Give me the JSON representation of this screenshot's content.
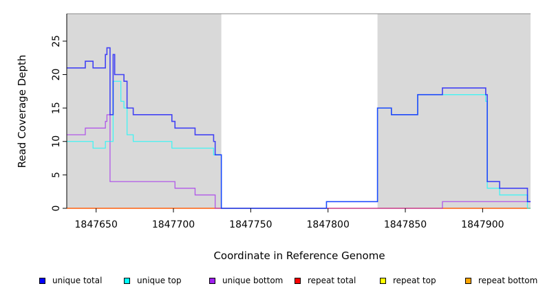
{
  "chart_data": {
    "type": "line",
    "step": true,
    "title": "",
    "xlabel": "Coordinate in Reference Genome",
    "ylabel": "Read Coverage Depth",
    "xlim": [
      1847631,
      1847931
    ],
    "ylim": [
      0,
      29.1
    ],
    "xticks": [
      1847650,
      1847700,
      1847750,
      1847800,
      1847850,
      1847900
    ],
    "yticks": [
      0,
      5,
      10,
      15,
      20,
      25
    ],
    "shaded_regions": [
      [
        1847631,
        1847731
      ],
      [
        1847832,
        1847931
      ]
    ],
    "legend_position": "bottom",
    "series": [
      {
        "name": "unique total",
        "color": "#0000ff",
        "steps": [
          [
            1847631,
            21
          ],
          [
            1847643,
            22
          ],
          [
            1847648,
            21
          ],
          [
            1847656,
            23
          ],
          [
            1847657,
            24
          ],
          [
            1847659,
            14
          ],
          [
            1847661,
            23
          ],
          [
            1847662,
            20
          ],
          [
            1847668,
            19
          ],
          [
            1847670,
            15
          ],
          [
            1847674,
            14
          ],
          [
            1847699,
            13
          ],
          [
            1847701,
            12
          ],
          [
            1847714,
            11
          ],
          [
            1847726,
            10
          ],
          [
            1847727,
            8
          ],
          [
            1847731,
            0
          ],
          [
            1847799,
            1
          ],
          [
            1847832,
            15
          ],
          [
            1847841,
            14
          ],
          [
            1847858,
            17
          ],
          [
            1847874,
            18
          ],
          [
            1847902,
            17
          ],
          [
            1847903,
            4
          ],
          [
            1847911,
            3
          ],
          [
            1847929,
            1
          ],
          [
            1847931,
            1
          ]
        ]
      },
      {
        "name": "unique top",
        "color": "#00ffff",
        "steps": [
          [
            1847631,
            10
          ],
          [
            1847648,
            9
          ],
          [
            1847656,
            10
          ],
          [
            1847661,
            19
          ],
          [
            1847666,
            16
          ],
          [
            1847668,
            15
          ],
          [
            1847670,
            11
          ],
          [
            1847674,
            10
          ],
          [
            1847699,
            9
          ],
          [
            1847726,
            8
          ],
          [
            1847731,
            0
          ],
          [
            1847799,
            1
          ],
          [
            1847832,
            15
          ],
          [
            1847841,
            14
          ],
          [
            1847858,
            17
          ],
          [
            1847902,
            16
          ],
          [
            1847903,
            3
          ],
          [
            1847911,
            2
          ],
          [
            1847929,
            0
          ],
          [
            1847931,
            0
          ]
        ]
      },
      {
        "name": "unique bottom",
        "color": "#a020f0",
        "steps": [
          [
            1847631,
            11
          ],
          [
            1847643,
            12
          ],
          [
            1847656,
            13
          ],
          [
            1847657,
            14
          ],
          [
            1847659,
            4
          ],
          [
            1847701,
            3
          ],
          [
            1847714,
            2
          ],
          [
            1847727,
            0
          ],
          [
            1847874,
            1
          ],
          [
            1847931,
            1
          ]
        ]
      },
      {
        "name": "repeat total",
        "color": "#ff0000",
        "steps": [
          [
            1847631,
            0
          ],
          [
            1847931,
            0
          ]
        ]
      },
      {
        "name": "repeat top",
        "color": "#ffff00",
        "steps": [
          [
            1847631,
            0
          ],
          [
            1847931,
            0
          ]
        ]
      },
      {
        "name": "repeat bottom",
        "color": "#ffa500",
        "steps": [
          [
            1847631,
            0
          ],
          [
            1847931,
            0
          ]
        ]
      }
    ]
  }
}
